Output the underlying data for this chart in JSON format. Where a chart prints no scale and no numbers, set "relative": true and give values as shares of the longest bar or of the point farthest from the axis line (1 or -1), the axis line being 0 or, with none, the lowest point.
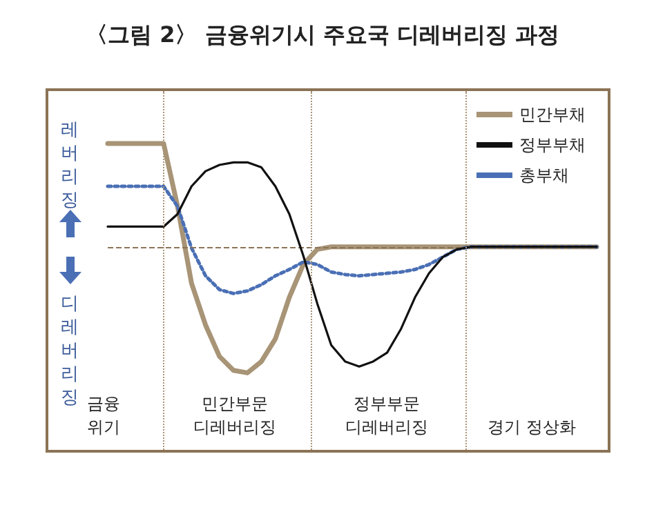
{
  "chart_data": {
    "type": "line",
    "title": "〈그림 2〉 금융위기시 주요국 디레버리징 과정",
    "relative": true,
    "annotations": [
      "레버리징",
      "디레버리징",
      "금융\n위기",
      "민간부문\n디레버리징",
      "정부부문\n디레버리징",
      "경기 정상화"
    ],
    "categories": [
      null,
      null,
      null,
      null,
      null,
      null,
      null,
      null,
      null,
      null,
      null,
      null,
      null,
      null,
      null,
      null,
      null,
      null,
      null,
      null,
      null,
      null,
      null,
      null,
      null,
      null,
      null,
      null,
      null,
      null,
      null,
      null,
      null,
      null,
      null,
      null
    ],
    "grid": false,
    "legend": "top right",
    "marker": "none",
    "ref_lines": [
      {
        "axis": "y",
        "value": 0,
        "color": "#8b7355",
        "line_style": "dashed"
      }
    ],
    "series": [
      {
        "name": "민간부채",
        "color": "#a89476",
        "line_style": "solid",
        "values": [
          0.82,
          0.82,
          0.82,
          0.82,
          0.82,
          0.32,
          -0.29,
          -0.62,
          -0.87,
          -0.98,
          -1,
          -0.91,
          -0.73,
          -0.4,
          -0.14,
          -0.02,
          0,
          0,
          0,
          0,
          0,
          0,
          0,
          0,
          0,
          0,
          0,
          0,
          0,
          0,
          0,
          0,
          0,
          0,
          0,
          0
        ]
      },
      {
        "name": "정부부채",
        "color": "#111111",
        "line_style": "solid",
        "values": [
          0.16,
          0.16,
          0.16,
          0.16,
          0.16,
          0.26,
          0.48,
          0.6,
          0.65,
          0.67,
          0.67,
          0.63,
          0.48,
          0.26,
          -0.07,
          -0.45,
          -0.78,
          -0.91,
          -0.95,
          -0.91,
          -0.84,
          -0.65,
          -0.4,
          -0.21,
          -0.08,
          -0.02,
          0,
          0,
          0,
          0,
          0,
          0,
          0,
          0,
          0,
          0
        ]
      },
      {
        "name": "총부채",
        "color": "#4a6fb5",
        "line_style": "dotted",
        "values": [
          0.48,
          0.48,
          0.48,
          0.48,
          0.48,
          0.32,
          -0.01,
          -0.23,
          -0.34,
          -0.37,
          -0.35,
          -0.3,
          -0.23,
          -0.18,
          -0.12,
          -0.14,
          -0.2,
          -0.22,
          -0.23,
          -0.22,
          -0.21,
          -0.2,
          -0.18,
          -0.14,
          -0.08,
          -0.02,
          0,
          0,
          0,
          0,
          0,
          0,
          0,
          0,
          0,
          0
        ]
      }
    ]
  }
}
